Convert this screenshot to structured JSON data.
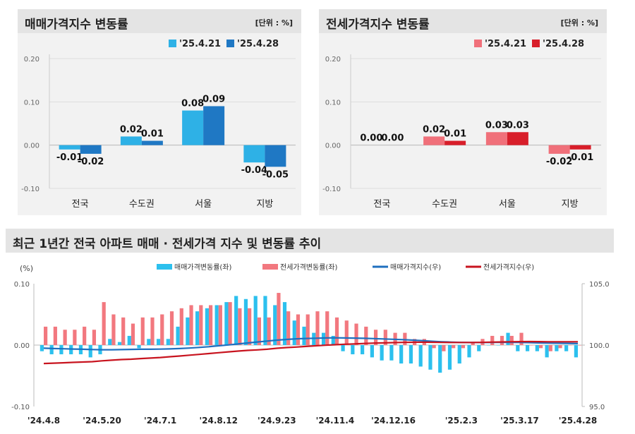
{
  "chart_data": [
    {
      "type": "bar",
      "title": "매매가격지수 변동률",
      "unit": "[단위 : %]",
      "categories": [
        "전국",
        "수도권",
        "서울",
        "지방"
      ],
      "ylim": [
        -0.1,
        0.2
      ],
      "yticks": [
        "0.20",
        "0.10",
        "0.00",
        "-0.10"
      ],
      "ytick_values": [
        0.2,
        0.1,
        0.0,
        -0.1
      ],
      "series": [
        {
          "name": "'25.4.21",
          "color": "#2eb1e6",
          "values": [
            -0.01,
            0.02,
            0.08,
            -0.04
          ],
          "labels": [
            "-0.01",
            "0.02",
            "0.08",
            "-0.04"
          ]
        },
        {
          "name": "'25.4.28",
          "color": "#1f78c4",
          "values": [
            -0.02,
            0.01,
            0.09,
            -0.05
          ],
          "labels": [
            "-0.02",
            "0.01",
            "0.09",
            "-0.05"
          ]
        }
      ]
    },
    {
      "type": "bar",
      "title": "전세가격지수 변동률",
      "unit": "[단위 : %]",
      "categories": [
        "전국",
        "수도권",
        "서울",
        "지방"
      ],
      "ylim": [
        -0.1,
        0.2
      ],
      "yticks": [
        "0.20",
        "0.10",
        "0.00",
        "-0.10"
      ],
      "ytick_values": [
        0.2,
        0.1,
        0.0,
        -0.1
      ],
      "series": [
        {
          "name": "'25.4.21",
          "color": "#f0707a",
          "values": [
            0.0,
            0.02,
            0.03,
            -0.02
          ],
          "labels": [
            "0.00",
            "0.02",
            "0.03",
            "-0.02"
          ]
        },
        {
          "name": "'25.4.28",
          "color": "#d81e2a",
          "values": [
            0.0,
            0.01,
            0.03,
            -0.01
          ],
          "labels": [
            "0.00",
            "0.01",
            "0.03",
            "-0.01"
          ]
        }
      ]
    },
    {
      "type": "bar+line",
      "title": "최근 1년간 전국 아파트 매매 · 전세가격 지수 및 변동률 추이",
      "yunit_left": "(%)",
      "ylim_left": [
        -0.1,
        0.1
      ],
      "yticks_left": [
        "0.10",
        "0.00",
        "-0.10"
      ],
      "ytick_values_left": [
        0.1,
        0.0,
        -0.1
      ],
      "ylim_right": [
        95.0,
        105.0
      ],
      "yticks_right": [
        "105.0",
        "100.0",
        "95.0"
      ],
      "ytick_values_right": [
        105.0,
        100.0,
        95.0
      ],
      "x_ticks": [
        "'24.4.8",
        "'24.5.20",
        "'24.7.1",
        "'24.8.12",
        "'24.9.23",
        "'24.11.4",
        "'24.12.16",
        "'25.2.3",
        "'25.3.17",
        "'25.4.28"
      ],
      "x_tick_index": [
        0,
        6,
        12,
        18,
        24,
        30,
        36,
        43,
        49,
        55
      ],
      "series": [
        {
          "name": "매매가격변동률(좌)",
          "kind": "bar",
          "color": "#2cc0ee",
          "values": [
            -0.01,
            -0.015,
            -0.015,
            -0.015,
            -0.015,
            -0.02,
            -0.015,
            0.01,
            0.005,
            0.015,
            -0.005,
            0.01,
            0.01,
            0.01,
            0.03,
            0.045,
            0.055,
            0.06,
            0.065,
            0.07,
            0.08,
            0.075,
            0.08,
            0.08,
            0.065,
            0.07,
            0.04,
            0.03,
            0.02,
            0.02,
            0.015,
            -0.01,
            -0.015,
            -0.015,
            -0.02,
            -0.025,
            -0.025,
            -0.03,
            -0.03,
            -0.035,
            -0.04,
            -0.045,
            -0.04,
            -0.03,
            -0.02,
            -0.01,
            0.0,
            0.0,
            0.02,
            -0.01,
            -0.01,
            -0.01,
            -0.02,
            -0.01,
            -0.01,
            -0.02
          ]
        },
        {
          "name": "전세가격변동률(좌)",
          "kind": "bar",
          "color": "#f2787f",
          "values": [
            0.03,
            0.03,
            0.025,
            0.025,
            0.03,
            0.025,
            0.07,
            0.05,
            0.045,
            0.035,
            0.045,
            0.045,
            0.05,
            0.055,
            0.06,
            0.065,
            0.065,
            0.065,
            0.065,
            0.07,
            0.06,
            0.06,
            0.045,
            0.045,
            0.085,
            0.055,
            0.05,
            0.05,
            0.055,
            0.055,
            0.045,
            0.04,
            0.035,
            0.03,
            0.025,
            0.025,
            0.02,
            0.02,
            0.01,
            0.01,
            -0.005,
            -0.01,
            -0.005,
            -0.005,
            0.005,
            0.01,
            0.015,
            0.015,
            0.015,
            0.02,
            0.0,
            -0.005,
            -0.01,
            -0.005,
            0.0,
            0.0
          ]
        },
        {
          "name": "매매가격지수(우)",
          "kind": "line",
          "color": "#1f6fbf",
          "values": [
            99.75,
            99.72,
            99.7,
            99.68,
            99.66,
            99.64,
            99.62,
            99.62,
            99.63,
            99.65,
            99.66,
            99.66,
            99.67,
            99.69,
            99.72,
            99.76,
            99.81,
            99.87,
            99.94,
            100.01,
            100.09,
            100.17,
            100.25,
            100.33,
            100.4,
            100.46,
            100.51,
            100.54,
            100.56,
            100.58,
            100.59,
            100.58,
            100.57,
            100.55,
            100.53,
            100.5,
            100.47,
            100.44,
            100.4,
            100.36,
            100.31,
            100.27,
            100.24,
            100.22,
            100.21,
            100.21,
            100.21,
            100.23,
            100.22,
            100.21,
            100.2,
            100.18,
            100.16,
            100.15,
            100.14,
            100.12
          ]
        },
        {
          "name": "전세가격지수(우)",
          "kind": "line",
          "color": "#c8141f",
          "values": [
            98.5,
            98.53,
            98.56,
            98.59,
            98.62,
            98.65,
            98.72,
            98.77,
            98.82,
            98.85,
            98.9,
            98.94,
            98.99,
            99.05,
            99.11,
            99.18,
            99.24,
            99.31,
            99.38,
            99.45,
            99.51,
            99.57,
            99.61,
            99.66,
            99.74,
            99.8,
            99.84,
            99.89,
            99.94,
            99.99,
            100.03,
            100.07,
            100.1,
            100.13,
            100.16,
            100.18,
            100.2,
            100.22,
            100.23,
            100.24,
            100.23,
            100.22,
            100.21,
            100.21,
            100.21,
            100.22,
            100.24,
            100.25,
            100.27,
            100.28,
            100.29,
            100.28,
            100.27,
            100.27,
            100.27,
            100.27
          ]
        }
      ]
    }
  ]
}
